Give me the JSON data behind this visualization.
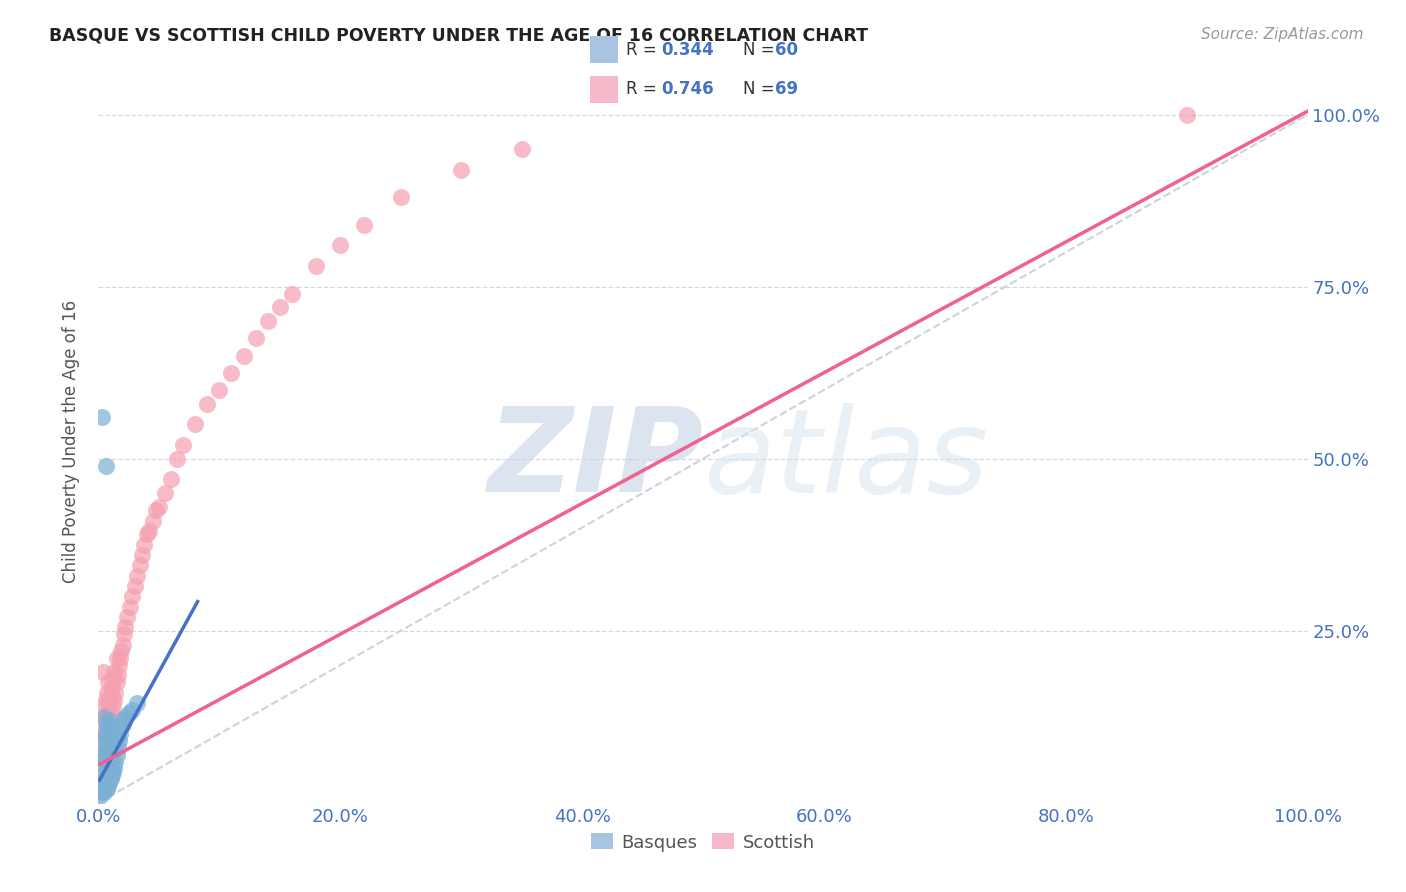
{
  "title": "BASQUE VS SCOTTISH CHILD POVERTY UNDER THE AGE OF 16 CORRELATION CHART",
  "source": "Source: ZipAtlas.com",
  "ylabel": "Child Poverty Under the Age of 16",
  "basque_color": "#7bafd4",
  "scottish_color": "#f4a0b0",
  "basque_line_color": "#4472c4",
  "scottish_line_color": "#f06090",
  "trend_line_color": "#c8cdd8",
  "background_color": "#ffffff",
  "title_color": "#222222",
  "legend_basque_R": "0.344",
  "legend_basque_N": "60",
  "legend_scottish_R": "0.746",
  "legend_scottish_N": "69",
  "basque_x": [
    0.002,
    0.003,
    0.003,
    0.004,
    0.004,
    0.004,
    0.005,
    0.005,
    0.005,
    0.005,
    0.005,
    0.006,
    0.006,
    0.006,
    0.007,
    0.007,
    0.007,
    0.007,
    0.008,
    0.008,
    0.008,
    0.008,
    0.009,
    0.009,
    0.009,
    0.009,
    0.01,
    0.01,
    0.01,
    0.011,
    0.011,
    0.011,
    0.012,
    0.012,
    0.013,
    0.013,
    0.014,
    0.015,
    0.015,
    0.016,
    0.016,
    0.017,
    0.018,
    0.019,
    0.02,
    0.021,
    0.022,
    0.025,
    0.028,
    0.032,
    0.001,
    0.002,
    0.003,
    0.004,
    0.005,
    0.006,
    0.007,
    0.008,
    0.003,
    0.006
  ],
  "basque_y": [
    0.03,
    0.025,
    0.07,
    0.02,
    0.055,
    0.09,
    0.015,
    0.04,
    0.07,
    0.1,
    0.125,
    0.03,
    0.06,
    0.095,
    0.02,
    0.05,
    0.075,
    0.11,
    0.025,
    0.055,
    0.085,
    0.115,
    0.03,
    0.06,
    0.09,
    0.12,
    0.035,
    0.07,
    0.1,
    0.04,
    0.075,
    0.11,
    0.045,
    0.08,
    0.05,
    0.085,
    0.06,
    0.07,
    0.095,
    0.08,
    0.105,
    0.09,
    0.1,
    0.11,
    0.115,
    0.12,
    0.125,
    0.13,
    0.135,
    0.145,
    0.01,
    0.015,
    0.02,
    0.025,
    0.03,
    0.035,
    0.04,
    0.045,
    0.56,
    0.49
  ],
  "scottish_x": [
    0.003,
    0.004,
    0.004,
    0.005,
    0.005,
    0.005,
    0.006,
    0.006,
    0.006,
    0.007,
    0.007,
    0.007,
    0.008,
    0.008,
    0.008,
    0.009,
    0.009,
    0.01,
    0.01,
    0.011,
    0.011,
    0.012,
    0.012,
    0.013,
    0.013,
    0.014,
    0.015,
    0.015,
    0.016,
    0.017,
    0.018,
    0.019,
    0.02,
    0.021,
    0.022,
    0.024,
    0.026,
    0.028,
    0.03,
    0.032,
    0.034,
    0.036,
    0.038,
    0.04,
    0.042,
    0.045,
    0.048,
    0.05,
    0.055,
    0.06,
    0.065,
    0.07,
    0.08,
    0.09,
    0.1,
    0.11,
    0.12,
    0.13,
    0.14,
    0.15,
    0.16,
    0.18,
    0.2,
    0.22,
    0.25,
    0.3,
    0.35,
    0.9,
    0.004
  ],
  "scottish_y": [
    0.09,
    0.08,
    0.12,
    0.07,
    0.1,
    0.14,
    0.08,
    0.115,
    0.15,
    0.09,
    0.13,
    0.16,
    0.1,
    0.14,
    0.175,
    0.11,
    0.15,
    0.12,
    0.16,
    0.13,
    0.17,
    0.14,
    0.18,
    0.15,
    0.19,
    0.16,
    0.175,
    0.21,
    0.185,
    0.2,
    0.21,
    0.22,
    0.23,
    0.245,
    0.255,
    0.27,
    0.285,
    0.3,
    0.315,
    0.33,
    0.345,
    0.36,
    0.375,
    0.39,
    0.395,
    0.41,
    0.425,
    0.43,
    0.45,
    0.47,
    0.5,
    0.52,
    0.55,
    0.58,
    0.6,
    0.625,
    0.65,
    0.675,
    0.7,
    0.72,
    0.74,
    0.78,
    0.81,
    0.84,
    0.88,
    0.92,
    0.95,
    1.0,
    0.19
  ],
  "basque_slope": 3.2,
  "basque_intercept": 0.03,
  "basque_xline_start": 0.001,
  "basque_xline_end": 0.082,
  "scottish_slope": 0.95,
  "scottish_intercept": 0.055,
  "scottish_xline_start": 0.001,
  "scottish_xline_end": 1.0,
  "xticks": [
    0.0,
    0.2,
    0.4,
    0.6,
    0.8,
    1.0
  ],
  "yticks": [
    0.0,
    0.25,
    0.5,
    0.75,
    1.0
  ],
  "xtick_labels": [
    "0.0%",
    "20.0%",
    "40.0%",
    "60.0%",
    "80.0%",
    "100.0%"
  ],
  "ytick_labels_right": [
    "",
    "25.0%",
    "50.0%",
    "75.0%",
    "100.0%"
  ],
  "xlim": [
    0.0,
    1.0
  ],
  "ylim": [
    0.0,
    1.05
  ]
}
